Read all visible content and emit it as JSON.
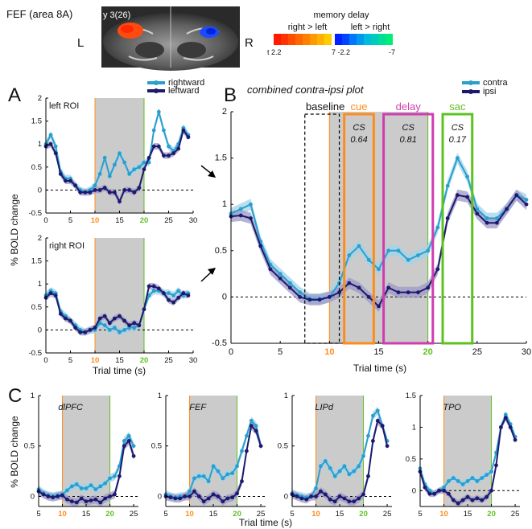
{
  "header": {
    "region_title": "FEF (area 8A)",
    "slice_label": "y 3(26)",
    "left_hemisphere": "L",
    "right_hemisphere": "R",
    "colorbar": {
      "title": "memory delay",
      "left_label": "right > left",
      "right_label": "left > right",
      "ticks": [
        "t 2.2",
        "7 -2.2",
        "-7"
      ],
      "colors_warm": [
        "#ff1a00",
        "#ff3300",
        "#ff4d00",
        "#ff6600",
        "#ff8000",
        "#ff9900",
        "#ffb300",
        "#ffcc00"
      ],
      "colors_cool": [
        "#0022ff",
        "#0044ff",
        "#0077ff",
        "#0099ee",
        "#00bbdd",
        "#00ccbb",
        "#00dd99",
        "#00ee77"
      ]
    }
  },
  "colors": {
    "contra": "#2a9fcf",
    "ipsi": "#1c1a6e",
    "contra_band": "#9fd4ea",
    "ipsi_band": "#9e98c6",
    "shade": "#cbcbcb",
    "cue": "#ff8c1a",
    "delay": "#d03cb0",
    "sac": "#5cc21f"
  },
  "panelA": {
    "letter": "A",
    "legend": [
      "rightward",
      "leftward"
    ],
    "ylabel": "% BOLD change",
    "xlabel": "Trial time (s)"
  },
  "panelB": {
    "letter": "B",
    "title": "combined contra-ipsi plot",
    "legend": [
      "contra",
      "ipsi"
    ],
    "xlabel": "Trial time (s)",
    "ylabel": "",
    "boxes": [
      {
        "label": "baseline",
        "color_key": "baseline"
      },
      {
        "label": "cue",
        "cs": "CS",
        "cs_value": "0.64"
      },
      {
        "label": "delay",
        "cs": "CS",
        "cs_value": "0.81"
      },
      {
        "label": "sac",
        "cs": "CS",
        "cs_value": "0.17"
      }
    ]
  },
  "panelC": {
    "letter": "C",
    "ylabel": "% BOLD change",
    "xlabel": "Trial time (s)"
  },
  "chart_data": [
    {
      "id": "A_left",
      "type": "line",
      "title": "left ROI",
      "xlim": [
        0,
        30
      ],
      "ylim": [
        -0.5,
        2
      ],
      "xticks": [
        0,
        5,
        10,
        15,
        20,
        25,
        30
      ],
      "yticks": [
        -0.5,
        0,
        0.5,
        1,
        1.5,
        2
      ],
      "ytick_labels": [
        "-0.5",
        "0",
        "0.5",
        "1",
        "1.5",
        "2"
      ],
      "shade": [
        10,
        20
      ],
      "x": [
        0,
        1,
        2,
        3,
        4,
        5,
        6,
        7,
        8,
        9,
        10,
        11,
        12,
        13,
        14,
        15,
        16,
        17,
        18,
        19,
        20,
        21,
        22,
        23,
        24,
        25,
        26,
        27,
        28,
        29
      ],
      "series": [
        {
          "name": "rightward",
          "color_key": "contra",
          "band": 0.08,
          "values": [
            1.0,
            1.2,
            0.95,
            0.4,
            0.25,
            0.25,
            0.1,
            0.0,
            -0.05,
            0.0,
            0.1,
            0.35,
            0.7,
            0.3,
            0.55,
            0.8,
            0.6,
            0.35,
            0.45,
            0.5,
            0.6,
            0.6,
            1.3,
            1.7,
            1.3,
            0.95,
            0.85,
            1.0,
            1.35,
            1.2
          ]
        },
        {
          "name": "leftward",
          "color_key": "ipsi",
          "band": 0.07,
          "values": [
            0.95,
            1.0,
            0.8,
            0.35,
            0.2,
            0.2,
            0.1,
            -0.05,
            -0.05,
            -0.05,
            0.0,
            0.0,
            0.05,
            -0.05,
            -0.05,
            -0.25,
            0.0,
            0.0,
            -0.05,
            0.05,
            0.45,
            0.7,
            0.95,
            0.95,
            0.75,
            0.75,
            0.8,
            0.9,
            1.3,
            1.15
          ]
        }
      ]
    },
    {
      "id": "A_right",
      "type": "line",
      "title": "right ROI",
      "xlim": [
        0,
        30
      ],
      "ylim": [
        -0.5,
        2
      ],
      "xticks": [
        0,
        5,
        10,
        15,
        20,
        25,
        30
      ],
      "yticks": [
        -0.5,
        0,
        0.5,
        1,
        1.5,
        2
      ],
      "ytick_labels": [
        "-0.5",
        "0",
        "0.5",
        "1",
        "1.5",
        "2"
      ],
      "shade": [
        10,
        20
      ],
      "x": [
        0,
        1,
        2,
        3,
        4,
        5,
        6,
        7,
        8,
        9,
        10,
        11,
        12,
        13,
        14,
        15,
        16,
        17,
        18,
        19,
        20,
        21,
        22,
        23,
        24,
        25,
        26,
        27,
        28,
        29
      ],
      "series": [
        {
          "name": "rightward",
          "color_key": "contra",
          "band": 0.08,
          "values": [
            0.75,
            0.85,
            0.8,
            0.4,
            0.3,
            0.2,
            0.1,
            0.0,
            -0.05,
            0.0,
            0.0,
            0.15,
            0.1,
            0.0,
            0.05,
            -0.05,
            0.0,
            0.05,
            0.05,
            0.1,
            0.45,
            0.75,
            0.85,
            0.85,
            0.8,
            0.8,
            0.75,
            0.85,
            0.75,
            0.8
          ]
        },
        {
          "name": "leftward",
          "color_key": "ipsi",
          "band": 0.07,
          "values": [
            0.7,
            0.8,
            0.75,
            0.35,
            0.25,
            0.2,
            0.05,
            -0.05,
            -0.05,
            0.0,
            0.05,
            0.25,
            0.3,
            0.15,
            0.25,
            0.3,
            0.2,
            0.1,
            0.15,
            0.1,
            0.45,
            0.95,
            0.95,
            0.9,
            0.8,
            0.65,
            0.6,
            0.7,
            0.8,
            0.75
          ]
        }
      ]
    },
    {
      "id": "B",
      "type": "line",
      "xlim": [
        0,
        30
      ],
      "ylim": [
        -0.5,
        2
      ],
      "xticks": [
        0,
        5,
        10,
        15,
        20,
        25,
        30
      ],
      "yticks": [
        -0.5,
        0,
        0.5,
        1,
        1.5,
        2
      ],
      "ytick_labels": [
        "-0.5",
        "0",
        "0.5",
        "1",
        "1.5",
        "2"
      ],
      "shade": [
        10,
        20
      ],
      "regions": {
        "baseline": [
          7.5,
          11
        ],
        "cue": [
          11.5,
          14.5
        ],
        "delay": [
          15.5,
          20.5
        ],
        "sac": [
          21.5,
          24.5
        ]
      },
      "x": [
        0,
        1,
        2,
        3,
        4,
        5,
        6,
        7,
        8,
        9,
        10,
        11,
        12,
        13,
        14,
        15,
        16,
        17,
        18,
        19,
        20,
        21,
        22,
        23,
        24,
        25,
        26,
        27,
        28,
        29,
        30
      ],
      "series": [
        {
          "name": "contra",
          "color_key": "contra",
          "band": 0.06,
          "values": [
            0.9,
            0.95,
            1.0,
            0.6,
            0.35,
            0.25,
            0.15,
            0.05,
            -0.02,
            -0.02,
            0.0,
            0.15,
            0.45,
            0.55,
            0.4,
            0.3,
            0.5,
            0.5,
            0.4,
            0.45,
            0.5,
            0.75,
            1.2,
            1.5,
            1.3,
            0.95,
            0.85,
            0.85,
            0.95,
            1.1,
            1.05
          ]
        },
        {
          "name": "ipsi",
          "color_key": "ipsi",
          "band": 0.06,
          "values": [
            0.87,
            0.88,
            0.85,
            0.55,
            0.3,
            0.2,
            0.1,
            0.0,
            -0.03,
            -0.03,
            0.0,
            0.05,
            0.15,
            0.1,
            0.0,
            -0.1,
            0.1,
            0.05,
            0.05,
            0.05,
            0.1,
            0.3,
            0.85,
            1.1,
            1.08,
            0.9,
            0.8,
            0.8,
            0.95,
            1.1,
            1.0
          ]
        }
      ]
    },
    {
      "id": "C_dlPFC",
      "type": "line",
      "title": "dlPFC",
      "xlim": [
        5,
        26
      ],
      "ylim": [
        -0.1,
        1
      ],
      "xticks": [
        5,
        10,
        15,
        20,
        25
      ],
      "yticks": [
        0,
        0.5,
        1
      ],
      "ytick_labels": [
        "0",
        "0.5",
        "1"
      ],
      "shade": [
        10,
        20
      ],
      "x": [
        5,
        6,
        7,
        8,
        9,
        10,
        11,
        12,
        13,
        14,
        15,
        16,
        17,
        18,
        19,
        20,
        21,
        22,
        23,
        24,
        25
      ],
      "series": [
        {
          "name": "contra",
          "color_key": "contra",
          "band": 0.04,
          "values": [
            0.07,
            0.03,
            0.01,
            0.0,
            0.01,
            0.02,
            0.06,
            0.1,
            0.12,
            0.08,
            0.08,
            0.11,
            0.07,
            0.1,
            0.13,
            0.18,
            0.2,
            0.3,
            0.55,
            0.6,
            0.5
          ]
        },
        {
          "name": "ipsi",
          "color_key": "ipsi",
          "band": 0.04,
          "values": [
            0.05,
            0.02,
            0.0,
            -0.01,
            0.0,
            0.01,
            -0.03,
            -0.05,
            -0.06,
            -0.02,
            -0.05,
            -0.04,
            -0.03,
            -0.06,
            -0.02,
            0.0,
            0.02,
            0.2,
            0.5,
            0.55,
            0.4
          ]
        }
      ]
    },
    {
      "id": "C_FEF",
      "type": "line",
      "title": "FEF",
      "xlim": [
        5,
        26
      ],
      "ylim": [
        -0.1,
        1
      ],
      "xticks": [
        5,
        10,
        15,
        20,
        25
      ],
      "yticks": [
        0,
        0.5,
        1
      ],
      "ytick_labels": [
        "0",
        "0.5",
        "1"
      ],
      "shade": [
        10,
        20
      ],
      "x": [
        5,
        6,
        7,
        8,
        9,
        10,
        11,
        12,
        13,
        14,
        15,
        16,
        17,
        18,
        19,
        20,
        21,
        22,
        23,
        24,
        25
      ],
      "series": [
        {
          "name": "contra",
          "color_key": "contra",
          "band": 0.04,
          "values": [
            0.02,
            0.0,
            -0.01,
            0.0,
            0.0,
            0.05,
            0.18,
            0.2,
            0.2,
            0.15,
            0.3,
            0.25,
            0.18,
            0.22,
            0.23,
            0.3,
            0.45,
            0.6,
            0.75,
            0.7,
            0.5
          ]
        },
        {
          "name": "ipsi",
          "color_key": "ipsi",
          "band": 0.04,
          "values": [
            0.0,
            -0.01,
            -0.02,
            -0.02,
            0.0,
            0.0,
            0.05,
            0.0,
            -0.05,
            -0.02,
            0.02,
            0.0,
            -0.05,
            -0.02,
            -0.01,
            0.03,
            0.15,
            0.45,
            0.7,
            0.65,
            0.5
          ]
        }
      ]
    },
    {
      "id": "C_LIPd",
      "type": "line",
      "title": "LIPd",
      "xlim": [
        5,
        26
      ],
      "ylim": [
        -0.1,
        1
      ],
      "xticks": [
        5,
        10,
        15,
        20,
        25
      ],
      "yticks": [
        0,
        0.5,
        1
      ],
      "ytick_labels": [
        "0",
        "0.5",
        "1"
      ],
      "shade": [
        10,
        20
      ],
      "x": [
        5,
        6,
        7,
        8,
        9,
        10,
        11,
        12,
        13,
        14,
        15,
        16,
        17,
        18,
        19,
        20,
        21,
        22,
        23,
        24,
        25
      ],
      "series": [
        {
          "name": "contra",
          "color_key": "contra",
          "band": 0.04,
          "values": [
            0.03,
            0.01,
            0.0,
            -0.01,
            0.0,
            0.08,
            0.3,
            0.35,
            0.28,
            0.2,
            0.25,
            0.3,
            0.22,
            0.25,
            0.3,
            0.4,
            0.6,
            0.8,
            0.85,
            0.7,
            0.55
          ]
        },
        {
          "name": "ipsi",
          "color_key": "ipsi",
          "band": 0.04,
          "values": [
            0.02,
            0.0,
            -0.02,
            -0.03,
            0.0,
            0.0,
            0.05,
            0.02,
            -0.03,
            -0.05,
            0.0,
            -0.02,
            -0.05,
            -0.05,
            -0.02,
            0.02,
            0.2,
            0.55,
            0.75,
            0.7,
            0.5
          ]
        }
      ]
    },
    {
      "id": "C_TPO",
      "type": "line",
      "title": "TPO",
      "xlim": [
        5,
        26
      ],
      "ylim": [
        -0.25,
        1.5
      ],
      "xticks": [
        5,
        10,
        15,
        20,
        25
      ],
      "yticks": [
        0,
        0.5,
        1,
        1.5
      ],
      "ytick_labels": [
        "0",
        "0.5",
        "1",
        "1.5"
      ],
      "shade": [
        10,
        20
      ],
      "x": [
        5,
        6,
        7,
        8,
        9,
        10,
        11,
        12,
        13,
        14,
        15,
        16,
        17,
        18,
        19,
        20,
        21,
        22,
        23,
        24,
        25
      ],
      "series": [
        {
          "name": "contra",
          "color_key": "contra",
          "band": 0.05,
          "values": [
            0.35,
            0.1,
            0.0,
            -0.05,
            0.0,
            0.05,
            0.15,
            0.2,
            0.15,
            0.1,
            0.15,
            0.2,
            0.15,
            0.2,
            0.25,
            0.3,
            0.6,
            1.0,
            1.2,
            1.05,
            0.85
          ]
        },
        {
          "name": "ipsi",
          "color_key": "ipsi",
          "band": 0.05,
          "values": [
            0.3,
            0.05,
            -0.05,
            -0.05,
            0.0,
            0.0,
            -0.05,
            -0.15,
            -0.2,
            -0.15,
            -0.1,
            -0.15,
            -0.12,
            -0.15,
            -0.1,
            0.0,
            0.4,
            1.0,
            1.15,
            1.0,
            0.8
          ]
        }
      ]
    }
  ]
}
